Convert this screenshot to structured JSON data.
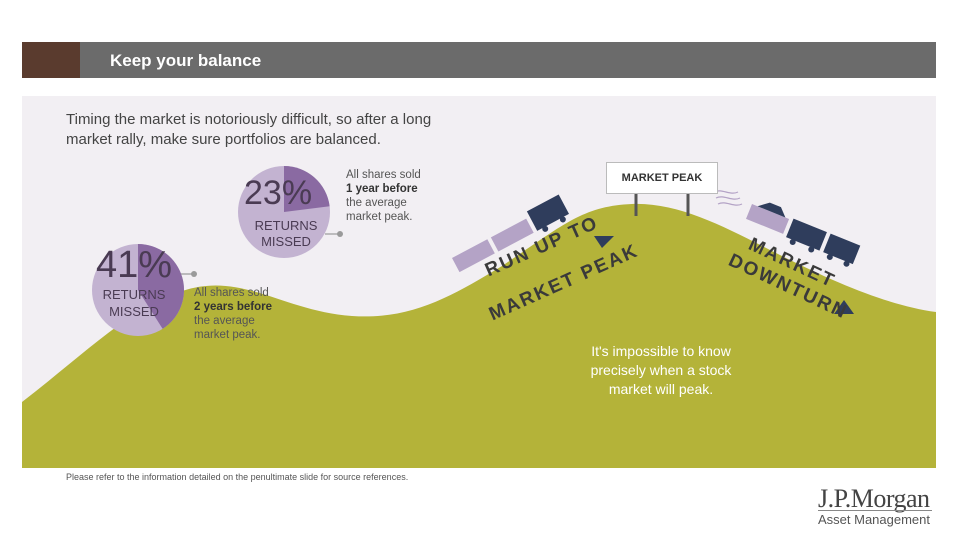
{
  "header": {
    "title": "Keep your balance"
  },
  "intro": {
    "text": "Timing the market is notoriously difficult, so after a long market rally, make sure portfolios are balanced."
  },
  "stat_left": {
    "percent": "41%",
    "label_line1": "RETURNS",
    "label_line2": "MISSED",
    "value": 41
  },
  "stat_top": {
    "percent": "23%",
    "label_line1": "RETURNS",
    "label_line2": "MISSED",
    "value": 23
  },
  "annotation_left": {
    "line1": "All shares sold",
    "line2": "2 years before",
    "line3": "the average",
    "line4": "market peak."
  },
  "annotation_top": {
    "line1": "All shares sold",
    "line2": "1 year before",
    "line3": "the average",
    "line4": "market peak."
  },
  "sign": {
    "text": "MARKET PEAK"
  },
  "road_left": {
    "line1": "RUN UP TO",
    "line2": "MARKET PEAK"
  },
  "road_right": {
    "line1": "MARKET",
    "line2": "DOWNTURN"
  },
  "impossible": {
    "text": "It's impossible to know precisely when a stock market will peak."
  },
  "footnote": {
    "text": "Please refer to the information detailed on the penultimate slide for source references."
  },
  "logo": {
    "name": "J.P.Morgan",
    "sub": "Asset Management"
  },
  "colors": {
    "hill": "#b4b339",
    "header": "#6b6b6b",
    "accent_dark": "#5a3b2e",
    "circle_light": "#c3b3d1",
    "circle_dark": "#8a6aa2",
    "train": "#2f3d5c",
    "car": "#b4a3c6"
  }
}
